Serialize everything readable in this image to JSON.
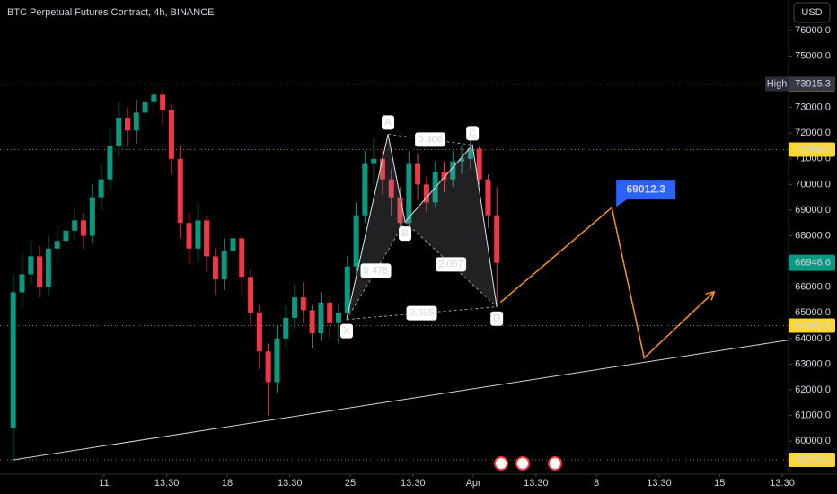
{
  "chart_data": {
    "type": "candlestick",
    "title": "BTC Perpetual Futures Contract, 4h, BINANCE",
    "currency": "USD",
    "x": [
      -124,
      -112,
      -100,
      -88,
      -76,
      -64,
      -52,
      -40,
      -28,
      -16,
      -4,
      8,
      20,
      32,
      44,
      56,
      68,
      80,
      92,
      104,
      116,
      128,
      140,
      152,
      164,
      176,
      188,
      200,
      212,
      224,
      236,
      248,
      260,
      272,
      284,
      296,
      308,
      320,
      332,
      344,
      356,
      368,
      380,
      392,
      404,
      416,
      428,
      440,
      452,
      464,
      476,
      488,
      500,
      512,
      524,
      536
    ],
    "open": [
      60500,
      65800,
      66500,
      67200,
      66000,
      67500,
      67800,
      68200,
      68600,
      68000,
      69500,
      70200,
      71500,
      72600,
      72100,
      72800,
      73200,
      73500,
      72900,
      71000,
      68500,
      67500,
      68600,
      67200,
      66300,
      67400,
      67900,
      66400,
      65000,
      63500,
      62300,
      64000,
      64800,
      65600,
      65100,
      64200,
      65400,
      64600,
      65000,
      66800,
      68800,
      70800,
      71000,
      70200,
      69500,
      68500,
      70800,
      70000,
      69300,
      70500,
      70200,
      70900,
      71000,
      71400,
      70200,
      68800
    ],
    "high": [
      66500,
      67300,
      67800,
      67600,
      68000,
      68400,
      68700,
      69100,
      68900,
      70000,
      70800,
      72200,
      73200,
      73000,
      73300,
      73700,
      73900,
      73700,
      73100,
      71500,
      68900,
      69300,
      68800,
      67500,
      67900,
      68400,
      68100,
      66700,
      65300,
      63800,
      64500,
      65300,
      66100,
      66200,
      65300,
      65800,
      65700,
      65400,
      67200,
      69300,
      71300,
      71800,
      71300,
      70600,
      69900,
      71300,
      71200,
      70300,
      70900,
      70900,
      71300,
      71500,
      71800,
      71500,
      70400,
      69900
    ],
    "low": [
      59270,
      65200,
      66100,
      65600,
      65700,
      66900,
      67300,
      67800,
      67500,
      67700,
      69000,
      69800,
      71100,
      71500,
      71600,
      72300,
      72700,
      72300,
      70400,
      67900,
      66900,
      67000,
      66600,
      65700,
      65900,
      66800,
      65700,
      64500,
      62800,
      61000,
      61900,
      63600,
      64400,
      64600,
      63600,
      63900,
      64000,
      63800,
      64700,
      66500,
      68500,
      70000,
      69600,
      68800,
      68200,
      68300,
      69400,
      68900,
      69100,
      69700,
      69900,
      70400,
      70600,
      70000,
      68300,
      65200
    ],
    "close": [
      65800,
      66500,
      67200,
      66000,
      67500,
      67800,
      68200,
      68600,
      68000,
      69500,
      70200,
      71500,
      72600,
      72100,
      72800,
      73200,
      73500,
      72900,
      71000,
      68500,
      67500,
      68600,
      67200,
      66300,
      67400,
      67900,
      66400,
      65000,
      63500,
      62300,
      64000,
      64800,
      65600,
      65100,
      64200,
      65400,
      64600,
      65000,
      66800,
      68800,
      70800,
      71000,
      70200,
      69500,
      68500,
      70800,
      70000,
      69300,
      70500,
      70200,
      70900,
      71000,
      71400,
      70200,
      68800,
      66946.6
    ],
    "up_color": "#089981",
    "down_color": "#f23645",
    "xlim": [
      -142,
      934
    ],
    "xticks": [
      {
        "value": 0,
        "label": "11"
      },
      {
        "value": 85.5,
        "label": "13:30"
      },
      {
        "value": 168,
        "label": "18"
      },
      {
        "value": 253.5,
        "label": "13:30"
      },
      {
        "value": 336,
        "label": "25"
      },
      {
        "value": 421.5,
        "label": "13:30"
      },
      {
        "value": 504,
        "label": "Apr"
      },
      {
        "value": 589.5,
        "label": "13:30"
      },
      {
        "value": 672,
        "label": "8"
      },
      {
        "value": 757.5,
        "label": "13:30"
      },
      {
        "value": 840,
        "label": "15"
      },
      {
        "value": 925.5,
        "label": "13:30"
      }
    ],
    "ylim": [
      58712,
      77185
    ],
    "yticks": [
      {
        "value": 60000,
        "label": "60000.0"
      },
      {
        "value": 61000,
        "label": "61000.0"
      },
      {
        "value": 62000,
        "label": "62000.0"
      },
      {
        "value": 63000,
        "label": "63000.0"
      },
      {
        "value": 64000,
        "label": "64000.0"
      },
      {
        "value": 65000,
        "label": "65000.0"
      },
      {
        "value": 66000,
        "label": "66000.0"
      },
      {
        "value": 67000,
        "label": "67000.0"
      },
      {
        "value": 68000,
        "label": "68000.0"
      },
      {
        "value": 69000,
        "label": "69000.0"
      },
      {
        "value": 70000,
        "label": "70000.0"
      },
      {
        "value": 71000,
        "label": "71000.0"
      },
      {
        "value": 72000,
        "label": "72000.0"
      },
      {
        "value": 73000,
        "label": "73000.0"
      },
      {
        "value": 74000,
        "label": "74000.0"
      },
      {
        "value": 75000,
        "label": "75000.0"
      },
      {
        "value": 76000,
        "label": "76000.0"
      }
    ],
    "grid": false,
    "levels": [
      73905.1,
      71360.4,
      64501.8,
      {
        "value": 59270,
        "label": "59270.0"
      }
    ],
    "level_color": "#fdd835",
    "high_marker": {
      "text": "High",
      "value": 73915.3
    },
    "current_price": 66946.6,
    "pattern": {
      "labels": [
        "X",
        "A",
        "B",
        "C",
        "D"
      ],
      "x": [
        331,
        387.5,
        410.8,
        502.8,
        535.9
      ],
      "y": [
        64742,
        71957,
        68541,
        71539,
        65230
      ],
      "ratios": [
        0.478,
        0.906,
        2.057,
        0.935
      ]
    },
    "projection": {
      "x": [
        540.8,
        692.8,
        737,
        832.6
      ],
      "y": [
        65404,
        69099,
        63243,
        65822
      ],
      "color": "#f7931a",
      "target": 69012.3
    },
    "trendline": {
      "x": [
        -124,
        934
      ],
      "y": [
        59270,
        63940
      ],
      "color": "#d1d4dc"
    }
  }
}
